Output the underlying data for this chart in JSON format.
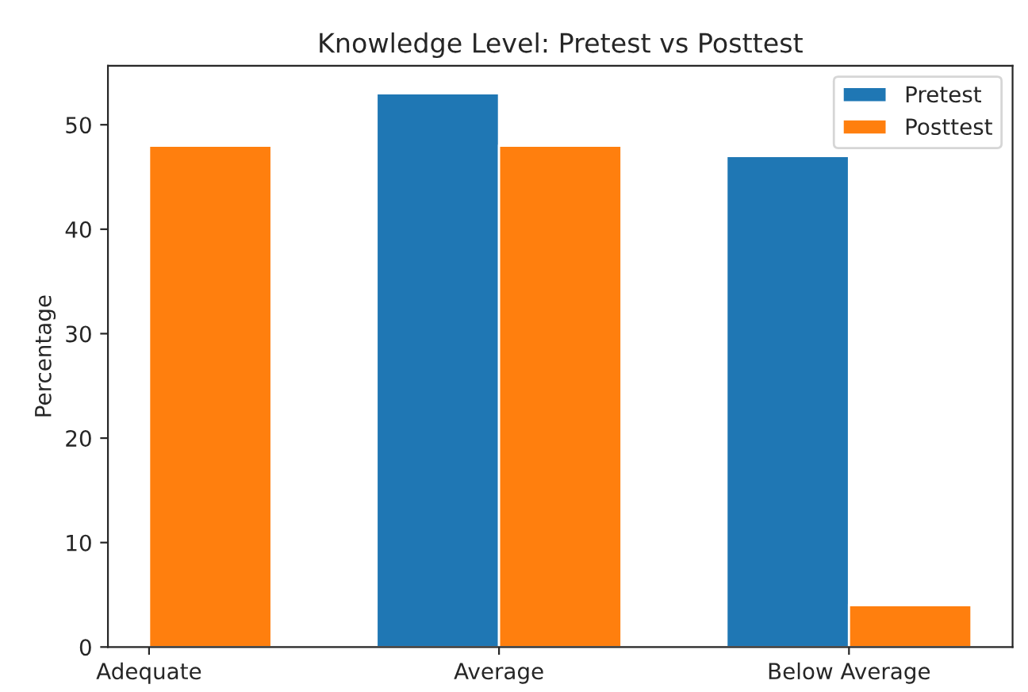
{
  "chart_data": {
    "type": "bar",
    "title": "Knowledge Level: Pretest vs Posttest",
    "ylabel": "Percentage",
    "categories": [
      "Adequate",
      "Average",
      "Below Average"
    ],
    "series": [
      {
        "name": "Pretest",
        "color": "#1f77b4",
        "values": [
          null,
          53,
          47
        ]
      },
      {
        "name": "Posttest",
        "color": "#ff7f0e",
        "values": [
          48,
          48,
          4
        ]
      }
    ],
    "ylim": [
      0,
      55.65
    ],
    "yticks": [
      0,
      10,
      20,
      30,
      40,
      50
    ],
    "legend": "top right",
    "grid": false
  }
}
